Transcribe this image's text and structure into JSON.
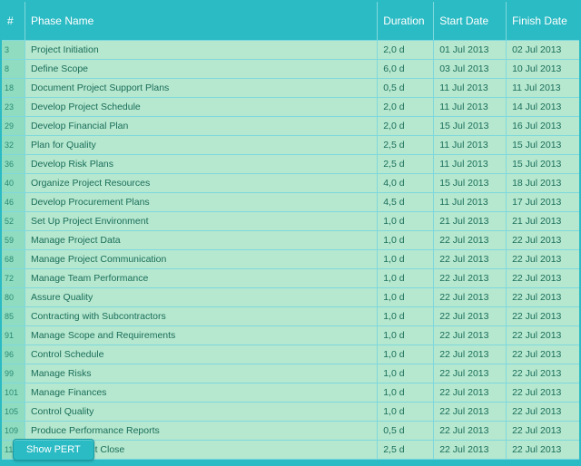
{
  "colors": {
    "header_bg": "#2bbbc4",
    "header_text": "#ffffff",
    "row_bg": "#b6e7cf",
    "row_text": "#1a6e5a",
    "idx_bg": "#8fdcc0",
    "border": "#7fd8dd"
  },
  "table": {
    "headers": {
      "num": "#",
      "phase": "Phase Name",
      "duration": "Duration",
      "start": "Start Date",
      "finish": "Finish Date"
    },
    "rows": [
      {
        "num": "3",
        "phase": "Project Initiation",
        "duration": "2,0 d",
        "start": "01 Jul 2013",
        "finish": "02 Jul 2013"
      },
      {
        "num": "8",
        "phase": "Define Scope",
        "duration": "6,0 d",
        "start": "03 Jul 2013",
        "finish": "10 Jul 2013"
      },
      {
        "num": "18",
        "phase": "Document Project Support Plans",
        "duration": "0,5 d",
        "start": "11 Jul 2013",
        "finish": "11 Jul 2013"
      },
      {
        "num": "23",
        "phase": "Develop Project Schedule",
        "duration": "2,0 d",
        "start": "11 Jul 2013",
        "finish": "14 Jul 2013"
      },
      {
        "num": "29",
        "phase": "Develop Financial Plan",
        "duration": "2,0 d",
        "start": "15 Jul 2013",
        "finish": "16 Jul 2013"
      },
      {
        "num": "32",
        "phase": "Plan for Quality",
        "duration": "2,5 d",
        "start": "11 Jul 2013",
        "finish": "15 Jul 2013"
      },
      {
        "num": "36",
        "phase": "Develop Risk Plans",
        "duration": "2,5 d",
        "start": "11 Jul 2013",
        "finish": "15 Jul 2013"
      },
      {
        "num": "40",
        "phase": "Organize Project Resources",
        "duration": "4,0 d",
        "start": "15 Jul 2013",
        "finish": "18 Jul 2013"
      },
      {
        "num": "46",
        "phase": "Develop Procurement Plans",
        "duration": "4,5 d",
        "start": "11 Jul 2013",
        "finish": "17 Jul 2013"
      },
      {
        "num": "52",
        "phase": "Set Up Project Environment",
        "duration": "1,0 d",
        "start": "21 Jul 2013",
        "finish": "21 Jul 2013"
      },
      {
        "num": "59",
        "phase": "Manage Project Data",
        "duration": "1,0 d",
        "start": "22 Jul 2013",
        "finish": "22 Jul 2013"
      },
      {
        "num": "68",
        "phase": "Manage Project Communication",
        "duration": "1,0 d",
        "start": "22 Jul 2013",
        "finish": "22 Jul 2013"
      },
      {
        "num": "72",
        "phase": "Manage Team Performance",
        "duration": "1,0 d",
        "start": "22 Jul 2013",
        "finish": "22 Jul 2013"
      },
      {
        "num": "80",
        "phase": "Assure Quality",
        "duration": "1,0 d",
        "start": "22 Jul 2013",
        "finish": "22 Jul 2013"
      },
      {
        "num": "85",
        "phase": "Contracting with Subcontractors",
        "duration": "1,0 d",
        "start": "22 Jul 2013",
        "finish": "22 Jul 2013"
      },
      {
        "num": "91",
        "phase": "Manage Scope and Requirements",
        "duration": "1,0 d",
        "start": "22 Jul 2013",
        "finish": "22 Jul 2013"
      },
      {
        "num": "96",
        "phase": "Control Schedule",
        "duration": "1,0 d",
        "start": "22 Jul 2013",
        "finish": "22 Jul 2013"
      },
      {
        "num": "99",
        "phase": "Manage Risks",
        "duration": "1,0 d",
        "start": "22 Jul 2013",
        "finish": "22 Jul 2013"
      },
      {
        "num": "101",
        "phase": "Manage Finances",
        "duration": "1,0 d",
        "start": "22 Jul 2013",
        "finish": "22 Jul 2013"
      },
      {
        "num": "105",
        "phase": "Control Quality",
        "duration": "1,0 d",
        "start": "22 Jul 2013",
        "finish": "22 Jul 2013"
      },
      {
        "num": "109",
        "phase": "Produce Performance Reports",
        "duration": "0,5 d",
        "start": "22 Jul 2013",
        "finish": "22 Jul 2013"
      },
      {
        "num": "113",
        "phase": "Manage Project Close",
        "duration": "2,5 d",
        "start": "22 Jul 2013",
        "finish": "22 Jul 2013"
      }
    ]
  },
  "button": {
    "label": "Show PERT"
  }
}
